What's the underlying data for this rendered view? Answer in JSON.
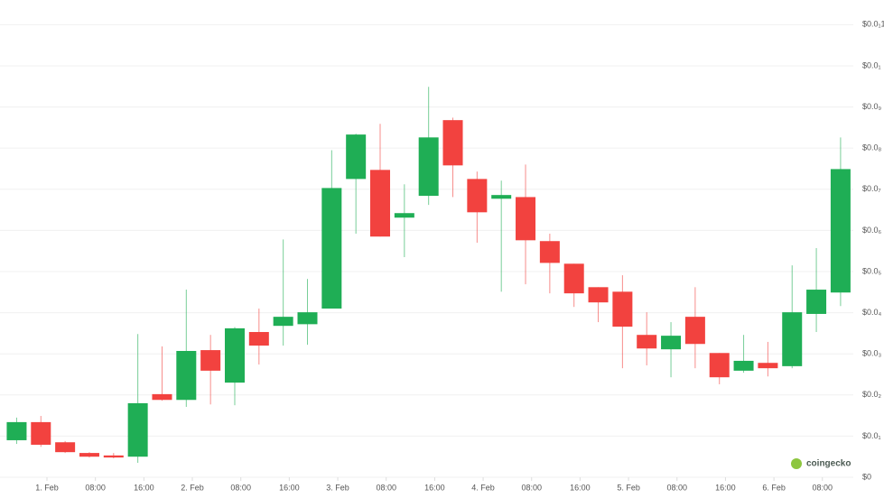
{
  "chart_data": {
    "type": "candlestick",
    "x": [
      -5,
      -1,
      3,
      7,
      11,
      15,
      19,
      23,
      27,
      31,
      35,
      39,
      43,
      47,
      51,
      55,
      59,
      63,
      67,
      71,
      75,
      79,
      83,
      87,
      91,
      95,
      99,
      103,
      107,
      111,
      115,
      119,
      123,
      127,
      131
    ],
    "open": [
      0.9,
      1.34,
      0.85,
      0.59,
      0.53,
      0.5,
      2.02,
      1.88,
      3.09,
      2.3,
      3.53,
      3.68,
      3.72,
      4.1,
      7.25,
      7.47,
      6.31,
      6.84,
      8.68,
      7.25,
      6.77,
      6.81,
      5.74,
      5.19,
      4.62,
      4.51,
      3.46,
      3.11,
      3.9,
      3.02,
      2.59,
      2.78,
      2.7,
      3.97,
      4.49
    ],
    "high": [
      1.45,
      1.49,
      0.88,
      0.61,
      0.59,
      3.48,
      3.18,
      4.56,
      3.46,
      3.65,
      4.1,
      5.78,
      4.82,
      7.95,
      8.35,
      8.59,
      7.12,
      9.49,
      8.74,
      7.43,
      7.21,
      7.6,
      5.92,
      5.19,
      4.62,
      4.91,
      4.01,
      3.77,
      4.62,
      3.02,
      3.46,
      3.29,
      5.15,
      5.57,
      8.26
    ],
    "low": [
      0.81,
      0.74,
      0.59,
      0.48,
      0.46,
      0.35,
      1.86,
      1.71,
      1.77,
      1.75,
      2.74,
      3.2,
      3.22,
      4.1,
      5.92,
      5.85,
      5.35,
      6.62,
      6.81,
      5.7,
      4.51,
      4.69,
      4.47,
      4.14,
      3.77,
      2.65,
      2.72,
      2.43,
      2.65,
      2.26,
      2.54,
      2.45,
      2.65,
      3.53,
      4.16
    ],
    "close": [
      1.34,
      0.79,
      0.61,
      0.5,
      0.48,
      1.8,
      1.88,
      3.07,
      2.59,
      3.62,
      3.2,
      3.9,
      4.01,
      7.03,
      8.33,
      5.85,
      6.42,
      8.26,
      7.58,
      6.44,
      6.86,
      5.76,
      5.21,
      4.47,
      4.25,
      3.66,
      3.13,
      3.44,
      3.24,
      2.43,
      2.83,
      2.65,
      4.01,
      4.56,
      7.49
    ],
    "up_color": "#1fae55",
    "down_color": "#f2423f",
    "xlim": [
      -7.75,
      133.1
    ],
    "xticks": [
      {
        "value": 0,
        "label": "1. Feb"
      },
      {
        "value": 8,
        "label": "08:00"
      },
      {
        "value": 16,
        "label": "16:00"
      },
      {
        "value": 24,
        "label": "2. Feb"
      },
      {
        "value": 32,
        "label": "08:00"
      },
      {
        "value": 40,
        "label": "16:00"
      },
      {
        "value": 48,
        "label": "3. Feb"
      },
      {
        "value": 56,
        "label": "08:00"
      },
      {
        "value": 64,
        "label": "16:00"
      },
      {
        "value": 72,
        "label": "4. Feb"
      },
      {
        "value": 80,
        "label": "08:00"
      },
      {
        "value": 88,
        "label": "16:00"
      },
      {
        "value": 96,
        "label": "5. Feb"
      },
      {
        "value": 104,
        "label": "08:00"
      },
      {
        "value": 112,
        "label": "16:00"
      },
      {
        "value": 120,
        "label": "6. Feb"
      },
      {
        "value": 128,
        "label": "08:00"
      }
    ],
    "ylim": [
      0,
      11.6
    ],
    "yticks": [
      {
        "value": 0,
        "label": "$0"
      },
      {
        "value": 1,
        "label": "$0.0₁"
      },
      {
        "value": 2,
        "label": "$0.0₂"
      },
      {
        "value": 3,
        "label": "$0.0₃"
      },
      {
        "value": 4,
        "label": "$0.0₄"
      },
      {
        "value": 5,
        "label": "$0.0₅"
      },
      {
        "value": 6,
        "label": "$0.0₆"
      },
      {
        "value": 7,
        "label": "$0.0₇"
      },
      {
        "value": 8,
        "label": "$0.0₈"
      },
      {
        "value": 9,
        "label": "$0.0₉"
      },
      {
        "value": 10,
        "label": "$0.0₁"
      },
      {
        "value": 11,
        "label": "$0.0₁1"
      }
    ],
    "grid": true,
    "watermark": "coingecko"
  }
}
